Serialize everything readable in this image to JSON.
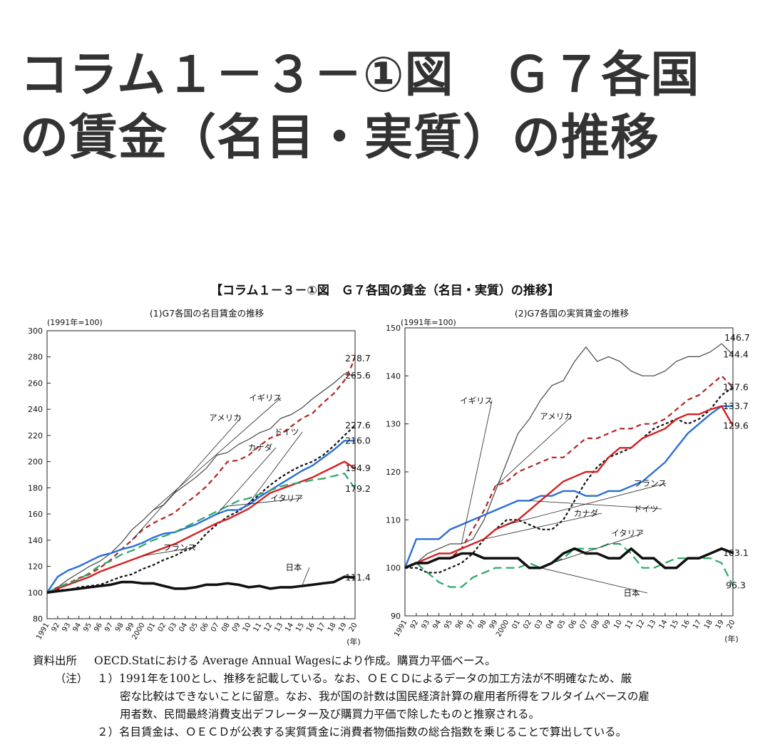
{
  "page": {
    "headline": "コラム１－３－①図　Ｇ７各国の賃金（名目・実質）の推移",
    "figure_caption": "【コラム１－３－①図　Ｇ７各国の賃金（名目・実質）の推移】"
  },
  "colors": {
    "イギリス": "#444444",
    "アメリカ": "#b22222",
    "ドイツ": "#111111",
    "カナダ": "#111111",
    "フランス": "#d42020",
    "イタリア": "#2aa86a",
    "日本": "#111111",
    "ドイツ_real": "#2a6fd6"
  },
  "chart_data": [
    {
      "type": "line",
      "title": "(1)G7各国の名目賃金の推移",
      "unit_label": "(1991年=100)",
      "xlabel": "(年)",
      "x": [
        "1991",
        "92",
        "93",
        "94",
        "95",
        "96",
        "97",
        "98",
        "99",
        "2000",
        "01",
        "02",
        "03",
        "04",
        "05",
        "06",
        "07",
        "08",
        "09",
        "10",
        "11",
        "12",
        "13",
        "14",
        "15",
        "16",
        "17",
        "18",
        "19",
        "20"
      ],
      "ylim": [
        80,
        300
      ],
      "yticks": [
        80,
        100,
        120,
        140,
        160,
        180,
        200,
        220,
        240,
        260,
        280,
        300
      ],
      "grid": false,
      "series": [
        {
          "name": "イギリス",
          "style": "thin",
          "values": [
            100,
            104,
            110,
            115,
            120,
            124,
            130,
            138,
            148,
            155,
            163,
            167,
            176,
            182,
            188,
            195,
            205,
            207,
            213,
            217,
            222,
            225,
            233,
            236,
            241,
            248,
            254,
            260,
            267,
            265.6
          ],
          "end_label": "265.6"
        },
        {
          "name": "アメリカ",
          "style": "dashed",
          "values": [
            100,
            104,
            107,
            111,
            114,
            119,
            125,
            133,
            140,
            148,
            153,
            157,
            161,
            168,
            174,
            181,
            190,
            200,
            201,
            205,
            212,
            218,
            221,
            227,
            233,
            237,
            245,
            252,
            262,
            278.7
          ],
          "end_label": "278.7"
        },
        {
          "name": "ドイツ",
          "style": "dotted",
          "values": [
            100,
            102,
            102,
            104,
            105,
            106,
            109,
            112,
            114,
            118,
            121,
            125,
            128,
            132,
            136,
            145,
            152,
            158,
            162,
            168,
            175,
            182,
            188,
            193,
            197,
            200,
            205,
            212,
            220,
            227.6
          ],
          "end_label": "227.6"
        },
        {
          "name": "カナダ",
          "style": "blue",
          "values": [
            100,
            112,
            117,
            120,
            124,
            128,
            130,
            133,
            135,
            138,
            142,
            145,
            146,
            149,
            152,
            156,
            160,
            163,
            163,
            167,
            173,
            178,
            183,
            188,
            193,
            197,
            203,
            209,
            216,
            216.0
          ],
          "end_label": "216.0"
        },
        {
          "name": "フランス",
          "style": "red",
          "values": [
            100,
            103,
            106,
            109,
            112,
            116,
            119,
            122,
            125,
            128,
            131,
            134,
            137,
            141,
            145,
            149,
            153,
            156,
            160,
            164,
            170,
            176,
            179,
            182,
            185,
            188,
            192,
            196,
            200,
            194.9
          ],
          "end_label": "194.9"
        },
        {
          "name": "イタリア",
          "style": "green-dashed",
          "values": [
            100,
            104,
            107,
            110,
            115,
            121,
            124,
            129,
            132,
            136,
            140,
            143,
            146,
            150,
            154,
            158,
            162,
            166,
            170,
            172,
            175,
            178,
            181,
            183,
            184,
            186,
            187,
            189,
            191,
            179.2
          ],
          "end_label": "179.2"
        },
        {
          "name": "日本",
          "style": "thick",
          "values": [
            100,
            101,
            102,
            103,
            104,
            105,
            106,
            108,
            108,
            107,
            107,
            105,
            103,
            103,
            104,
            106,
            106,
            107,
            106,
            104,
            105,
            103,
            104,
            104,
            105,
            106,
            107,
            108,
            112,
            111.4
          ],
          "end_label": "111.4"
        }
      ],
      "labels": [
        "イギリス",
        "アメリカ",
        "ドイツ",
        "カナダ",
        "フランス",
        "イタリア",
        "日本"
      ]
    },
    {
      "type": "line",
      "title": "(2)G7各国の実質賃金の推移",
      "unit_label": "(1991年=100)",
      "xlabel": "(年)",
      "x": [
        "1991",
        "92",
        "93",
        "94",
        "95",
        "96",
        "97",
        "98",
        "99",
        "2000",
        "01",
        "02",
        "03",
        "04",
        "05",
        "06",
        "07",
        "08",
        "09",
        "10",
        "11",
        "12",
        "13",
        "14",
        "15",
        "16",
        "17",
        "18",
        "19",
        "20"
      ],
      "ylim": [
        90,
        150
      ],
      "yticks": [
        90,
        100,
        110,
        120,
        130,
        140,
        150
      ],
      "grid": false,
      "series": [
        {
          "name": "イギリス",
          "style": "thin",
          "values": [
            100,
            101,
            103,
            104,
            105,
            105,
            106,
            110,
            116,
            122,
            128,
            131,
            135,
            138,
            139,
            143,
            146,
            143,
            144,
            143,
            141,
            140,
            140,
            141,
            143,
            144,
            144,
            145,
            146.7,
            144.4
          ],
          "end_label": "144.4",
          "alt_label": "146.7"
        },
        {
          "name": "アメリカ",
          "style": "dashed",
          "values": [
            100,
            101,
            101,
            102,
            102,
            104,
            108,
            112,
            117,
            118,
            120,
            121,
            122,
            123,
            123,
            125,
            127,
            127,
            128,
            129,
            129,
            130,
            130,
            131,
            133,
            135,
            136,
            138,
            140,
            137.6
          ],
          "end_label": "137.6"
        },
        {
          "name": "カナダ",
          "style": "dotted",
          "values": [
            100,
            100,
            99,
            99,
            100,
            101,
            103,
            106,
            108,
            110,
            110,
            109,
            108,
            108,
            110,
            114,
            118,
            121,
            123,
            124,
            125,
            127,
            129,
            130,
            131,
            130,
            131,
            133,
            136,
            137.6
          ],
          "end_label": ""
        },
        {
          "name": "ドイツ",
          "style": "blue",
          "values": [
            100,
            106,
            106,
            106,
            108,
            109,
            110,
            111,
            112,
            113,
            114,
            114,
            115,
            115,
            116,
            116,
            115,
            115,
            116,
            116,
            117,
            118,
            120,
            122,
            125,
            128,
            130,
            132,
            133.7,
            133.7
          ],
          "end_label": "133.7"
        },
        {
          "name": "フランス",
          "style": "red",
          "values": [
            100,
            101,
            102,
            103,
            103,
            104,
            105,
            106,
            108,
            109,
            110,
            112,
            114,
            116,
            118,
            119,
            120,
            120,
            123,
            125,
            125,
            127,
            128,
            129,
            131,
            132,
            132,
            133,
            133.7,
            129.6
          ],
          "end_label": "129.6"
        },
        {
          "name": "イタリア",
          "style": "green-dashed",
          "values": [
            100,
            101,
            99,
            97,
            96,
            96,
            98,
            99,
            100,
            100,
            100,
            101,
            100,
            101,
            102,
            104,
            104,
            104,
            105,
            105,
            103,
            100,
            100,
            101,
            102,
            102,
            102,
            102,
            101,
            96.3
          ],
          "end_label": "96.3"
        },
        {
          "name": "日本",
          "style": "thick",
          "values": [
            100,
            101,
            101,
            102,
            102,
            103,
            103,
            102,
            102,
            102,
            102,
            100,
            100,
            101,
            103,
            104,
            103,
            103,
            102,
            102,
            104,
            102,
            102,
            100,
            100,
            102,
            102,
            103,
            104,
            103.1
          ],
          "end_label": "103.1"
        }
      ],
      "labels": [
        "イギリス",
        "アメリカ",
        "フランス",
        "カナダ",
        "ドイツ",
        "イタリア",
        "日本"
      ]
    }
  ],
  "notes": {
    "source_label": "資料出所",
    "source_text": "OECD.Statにおける Average Annual Wagesにより作成。購買力平価ベース。",
    "note_label": "（注）",
    "note1_line1": "１）1991年を100とし、推移を記載している。なお、ＯＥＣＤによるデータの加工方法が不明確なため、厳",
    "note1_line2": "密な比較はできないことに留意。なお、我が国の計数は国民経済計算の雇用者所得をフルタイムベースの雇",
    "note1_line3": "用者数、民間最終消費支出デフレーター及び購買力平価で除したものと推察される。",
    "note2": "２）名目賃金は、ＯＥＣＤが公表する実質賃金に消費者物価指数の総合指数を乗じることで算出している。"
  }
}
